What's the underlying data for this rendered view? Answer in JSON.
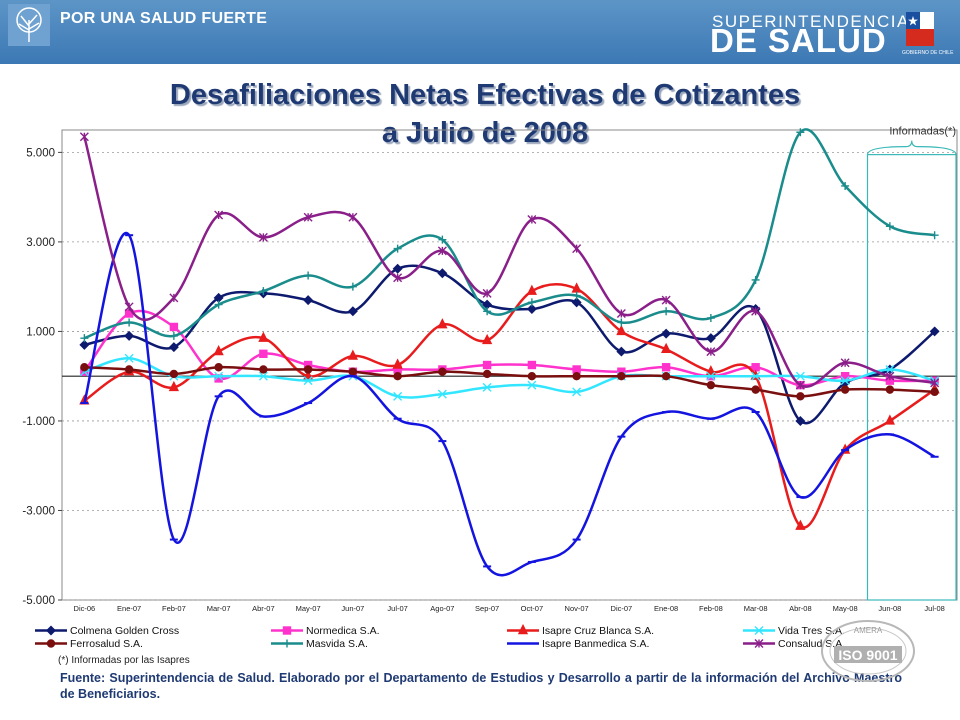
{
  "header": {
    "slogan": "POR UNA SALUD FUERTE",
    "brand_line1": "SUPERINTENDENCIA",
    "brand_line2": "DE SALUD",
    "brand_sub": "GOBIERNO DE CHILE"
  },
  "page_title_line1": "Desafiliaciones Netas Efectivas de Cotizantes",
  "page_title_line2": "a Julio de 2008",
  "note": "(*) Informadas por las Isapres",
  "source": "Fuente:   Superintendencia de Salud. Elaborado por el Departamento de Estudios y Desarrollo a partir de la información del Archivo Maestro de Beneficiarios.",
  "seal": {
    "top": "AMERA",
    "main": "ISO 9001"
  },
  "chart_data": {
    "type": "line",
    "title": "Desafiliaciones Netas Efectivas de Cotizantes a Julio de 2008",
    "xlabel": "",
    "ylabel": "",
    "ylim": [
      -5000,
      5500
    ],
    "yticks": [
      5000,
      3000,
      1000,
      -1000,
      -3000,
      -5000
    ],
    "ytick_labels": [
      "5.000",
      "3.000",
      "1.000",
      "-1.000",
      "-3.000",
      "-5.000"
    ],
    "grid": true,
    "legend_position": "bottom",
    "categories": [
      "Dic-06",
      "Ene-07",
      "Feb-07",
      "Mar-07",
      "Abr-07",
      "May-07",
      "Jun-07",
      "Jul-07",
      "Ago-07",
      "Sep-07",
      "Oct-07",
      "Nov-07",
      "Dic-07",
      "Ene-08",
      "Feb-08",
      "Mar-08",
      "Abr-08",
      "May-08",
      "Jun-08",
      "Jul-08"
    ],
    "annotation": {
      "label": "Informadas(*)",
      "from": "Jun-08",
      "to": "Jul-08"
    },
    "series": [
      {
        "name": "Colmena Golden Cross",
        "color": "#0d1a6e",
        "marker": "diamond",
        "values": [
          700,
          900,
          650,
          1750,
          1850,
          1700,
          1450,
          2400,
          2300,
          1600,
          1500,
          1650,
          550,
          950,
          850,
          1500,
          -1000,
          -150,
          150,
          1000
        ]
      },
      {
        "name": "Normedica S.A.",
        "color": "#ff33cc",
        "marker": "square",
        "values": [
          100,
          1400,
          1100,
          -50,
          500,
          250,
          100,
          150,
          150,
          250,
          250,
          150,
          100,
          200,
          0,
          200,
          -200,
          0,
          -100,
          -100
        ]
      },
      {
        "name": "Isapre Cruz Blanca S.A.",
        "color": "#e81c1c",
        "marker": "triangle",
        "values": [
          -550,
          100,
          -250,
          550,
          850,
          0,
          450,
          250,
          1150,
          800,
          1900,
          1950,
          1000,
          600,
          100,
          0,
          -3350,
          -1650,
          -1000,
          -300
        ]
      },
      {
        "name": "Vida Tres S.A.",
        "color": "#33e6ff",
        "marker": "x",
        "values": [
          100,
          400,
          0,
          0,
          0,
          -100,
          0,
          -450,
          -400,
          -250,
          -200,
          -350,
          0,
          0,
          0,
          0,
          0,
          -100,
          150,
          -100
        ]
      },
      {
        "name": "Ferrosalud S.A.",
        "color": "#7a0f0f",
        "marker": "circle",
        "values": [
          200,
          150,
          50,
          200,
          150,
          150,
          100,
          0,
          100,
          50,
          0,
          0,
          0,
          0,
          -200,
          -300,
          -450,
          -300,
          -300,
          -350
        ]
      },
      {
        "name": "Masvida S.A.",
        "color": "#1a8c8c",
        "marker": "plus",
        "values": [
          850,
          1200,
          900,
          1600,
          1900,
          2250,
          2000,
          2850,
          3050,
          1450,
          1650,
          1800,
          1200,
          1450,
          1300,
          2150,
          5450,
          4250,
          3350,
          3150
        ]
      },
      {
        "name": "Isapre Banmedica S.A.",
        "color": "#1414e0",
        "marker": "dash",
        "values": [
          -600,
          3150,
          -3650,
          -450,
          -900,
          -600,
          0,
          -950,
          -1450,
          -4250,
          -4150,
          -3650,
          -1350,
          -800,
          -950,
          -800,
          -2700,
          -1650,
          -1300,
          -1800
        ]
      },
      {
        "name": "Consalud S.A.",
        "color": "#8a1f8a",
        "marker": "star",
        "values": [
          5350,
          1550,
          1750,
          3600,
          3100,
          3550,
          3550,
          2200,
          2800,
          1850,
          3500,
          2850,
          1400,
          1700,
          550,
          1450,
          -200,
          300,
          0,
          -150
        ]
      }
    ]
  }
}
